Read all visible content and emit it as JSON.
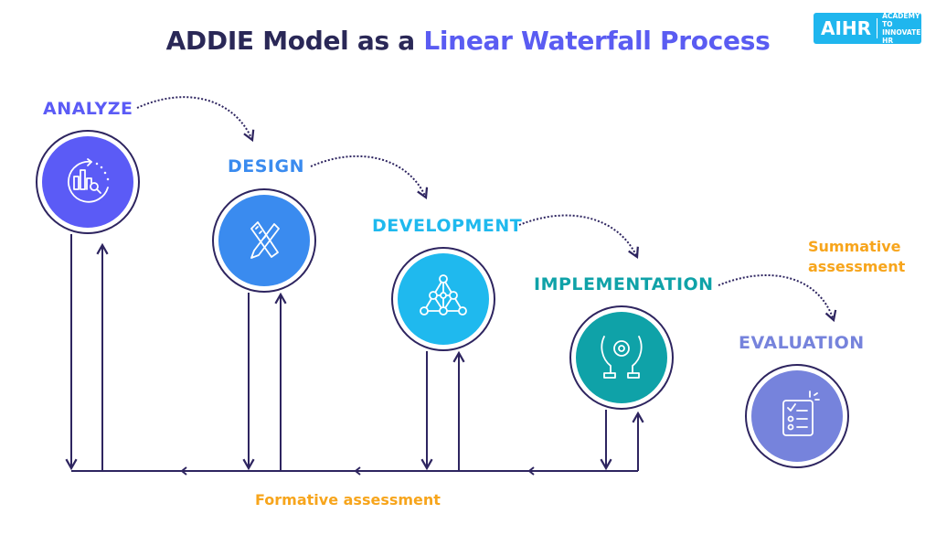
{
  "title": {
    "part1": "ADDIE Model as a ",
    "part2": "Linear Waterfall Process"
  },
  "logo": {
    "mark": "AIHR",
    "line1": "ACADEMY TO",
    "line2": "INNOVATE HR"
  },
  "phases": [
    {
      "label": "ANALYZE",
      "color": "#5b5bf6",
      "icon": "chart-analysis-icon"
    },
    {
      "label": "DESIGN",
      "color": "#3a8bef",
      "icon": "pencil-ruler-icon"
    },
    {
      "label": "DEVELOPMENT",
      "color": "#1fb9ee",
      "icon": "network-triangle-icon"
    },
    {
      "label": "IMPLEMENTATION",
      "color": "#0fa2a8",
      "icon": "hands-gear-icon"
    },
    {
      "label": "EVALUATION",
      "color": "#7683dc",
      "icon": "checklist-icon"
    }
  ],
  "summative": {
    "line1": "Summative",
    "line2": "assessment"
  },
  "formative": "Formative assessment",
  "colors": {
    "line": "#2e2560",
    "accent_orange": "#f7a51c"
  }
}
